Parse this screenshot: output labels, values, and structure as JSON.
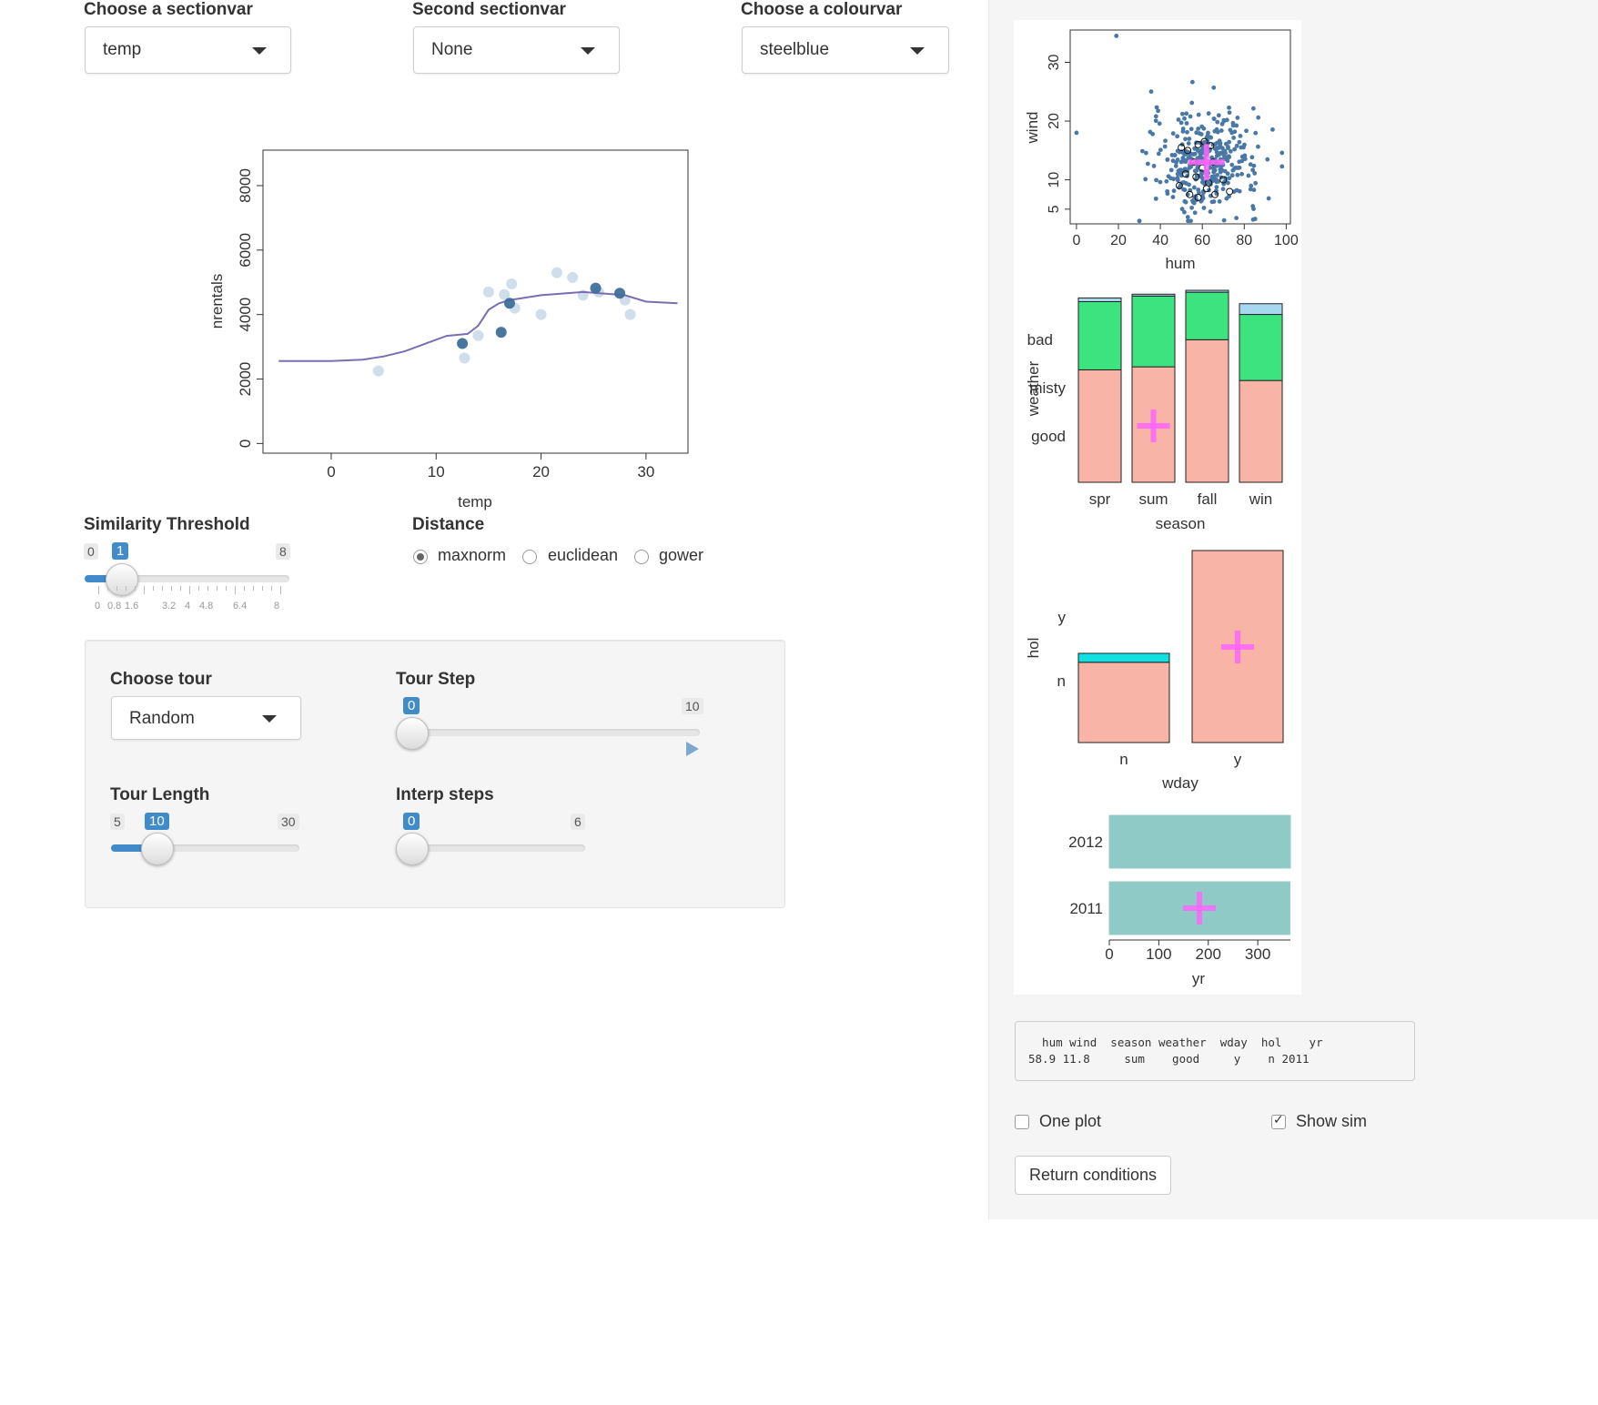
{
  "controls": {
    "sectionvar": {
      "label": "Choose a sectionvar",
      "value": "temp"
    },
    "second_sectionvar": {
      "label": "Second sectionvar",
      "value": "None"
    },
    "colourvar": {
      "label": "Choose a colourvar",
      "value": "steelblue"
    }
  },
  "similarity": {
    "label": "Similarity Threshold",
    "min": "0",
    "max": "8",
    "value": "1",
    "ticks": [
      "0",
      "0.8",
      "1.6",
      "3.2",
      "4",
      "4.8",
      "6.4",
      "8"
    ]
  },
  "distance": {
    "label": "Distance",
    "options": [
      "maxnorm",
      "euclidean",
      "gower"
    ],
    "selected": "maxnorm"
  },
  "tour": {
    "choose_label": "Choose tour",
    "choose_value": "Random",
    "step_label": "Tour Step",
    "step_min": "0",
    "step_max": "10",
    "step_value": "0",
    "length_label": "Tour Length",
    "length_min": "5",
    "length_max": "30",
    "length_value": "10",
    "interp_label": "Interp steps",
    "interp_min": "0",
    "interp_max": "6",
    "interp_value": "0",
    "play_icon": "play-icon"
  },
  "side": {
    "table_header": "  hum wind  season weather  wday  hol    yr",
    "table_row": "58.9 11.8     sum    good     y    n 2011",
    "one_plot_label": "One plot",
    "one_plot_checked": false,
    "show_sim_label": "Show sim",
    "show_sim_checked": true,
    "return_button": "Return conditions"
  },
  "colors": {
    "accent": "#428bca",
    "point": "#4a78a6",
    "curve": "#7b6db5",
    "salmon": "#f8b4a6",
    "green": "#3de37f",
    "cyan": "#11e0e0",
    "teal": "#8fcac6",
    "cross": "#ff66ff"
  },
  "chart_data": [
    {
      "type": "line",
      "title": "",
      "xlabel": "temp",
      "ylabel": "nrentals",
      "xlim": [
        -6.5,
        34
      ],
      "ylim": [
        -300,
        9100
      ],
      "xticks": [
        "0",
        "10",
        "20",
        "30"
      ],
      "yticks": [
        "0",
        "2000",
        "4000",
        "6000",
        "8000"
      ],
      "series": [
        {
          "type": "line",
          "x": [
            -5,
            0,
            3,
            5,
            7,
            9,
            11,
            13,
            14,
            15,
            16,
            17,
            18,
            20,
            22,
            24,
            26,
            28,
            30,
            33
          ],
          "y": [
            2560,
            2560,
            2600,
            2700,
            2860,
            3100,
            3340,
            3400,
            3650,
            4150,
            4350,
            4450,
            4500,
            4600,
            4650,
            4700,
            4650,
            4600,
            4400,
            4350
          ]
        },
        {
          "type": "scatter",
          "opacity": "strong",
          "x": [
            12.5,
            16.2,
            17,
            25.2,
            27.5
          ],
          "y": [
            3100,
            3450,
            4350,
            4820,
            4660
          ]
        },
        {
          "type": "scatter",
          "opacity": "faint",
          "x": [
            4.5,
            12.7,
            14,
            15,
            16.5,
            17.2,
            17.5,
            20,
            21.5,
            23,
            24,
            25.5,
            28,
            28.5
          ],
          "y": [
            2250,
            2650,
            3350,
            4700,
            4620,
            4950,
            4200,
            4000,
            5300,
            5150,
            4600,
            4700,
            4450,
            4000
          ]
        }
      ]
    },
    {
      "type": "scatter",
      "xlabel": "hum",
      "ylabel": "wind",
      "xlim": [
        -3,
        102
      ],
      "ylim": [
        2.5,
        35.5
      ],
      "xticks": [
        "0",
        "20",
        "40",
        "60",
        "80",
        "100"
      ],
      "yticks": [
        "5",
        "10",
        "20",
        "30"
      ],
      "outliers": [
        {
          "x": 19,
          "y": 34.5
        },
        {
          "x": 0,
          "y": 18
        }
      ],
      "cluster_center": {
        "x": 62,
        "y": 13
      },
      "cluster_spread": {
        "x": 16,
        "y": 5.5
      },
      "cluster_count": 380,
      "highlight_points": [
        {
          "x": 50,
          "y": 15.5
        },
        {
          "x": 53,
          "y": 15
        },
        {
          "x": 58,
          "y": 16
        },
        {
          "x": 61,
          "y": 16.5
        },
        {
          "x": 64,
          "y": 15.8
        },
        {
          "x": 52,
          "y": 11
        },
        {
          "x": 57,
          "y": 10.5
        },
        {
          "x": 60,
          "y": 12
        },
        {
          "x": 65,
          "y": 13
        },
        {
          "x": 70,
          "y": 10
        },
        {
          "x": 54,
          "y": 7.5
        },
        {
          "x": 58,
          "y": 7
        },
        {
          "x": 62,
          "y": 8.5
        },
        {
          "x": 66,
          "y": 7.5
        },
        {
          "x": 73,
          "y": 8
        },
        {
          "x": 49,
          "y": 9
        },
        {
          "x": 56,
          "y": 13
        },
        {
          "x": 63,
          "y": 9.5
        }
      ],
      "marker": {
        "x": 62,
        "y": 13
      }
    },
    {
      "type": "bar",
      "stacked": true,
      "proportional": true,
      "xlabel": "season",
      "ylabel": "weather",
      "categories": [
        "spr",
        "sum",
        "fall",
        "win"
      ],
      "series": [
        {
          "name": "good",
          "values": [
            0.61,
            0.62,
            0.75,
            0.57
          ]
        },
        {
          "name": "misty",
          "values": [
            0.37,
            0.38,
            0.25,
            0.37
          ]
        },
        {
          "name": "bad",
          "values": [
            0.02,
            0.01,
            0.01,
            0.06
          ]
        }
      ],
      "widths": [
        0.96,
        0.96,
        0.96,
        0.96
      ],
      "marker_category": "sum"
    },
    {
      "type": "bar",
      "stacked": true,
      "proportional": true,
      "xlabel": "wday",
      "ylabel": "hol",
      "categories": [
        "n",
        "y"
      ],
      "series": [
        {
          "name": "n",
          "values": [
            0.9,
            1.0
          ]
        },
        {
          "name": "y",
          "values": [
            0.1,
            0.0
          ]
        }
      ],
      "marker_category": "y"
    },
    {
      "type": "bar",
      "orientation": "horizontal",
      "xlabel": "yr",
      "ylabel": "",
      "categories": [
        "2011",
        "2012"
      ],
      "values": [
        365,
        366
      ],
      "xlim": [
        0,
        366
      ],
      "xticks": [
        "0",
        "100",
        "200",
        "300"
      ],
      "marker_category": "2011"
    }
  ]
}
